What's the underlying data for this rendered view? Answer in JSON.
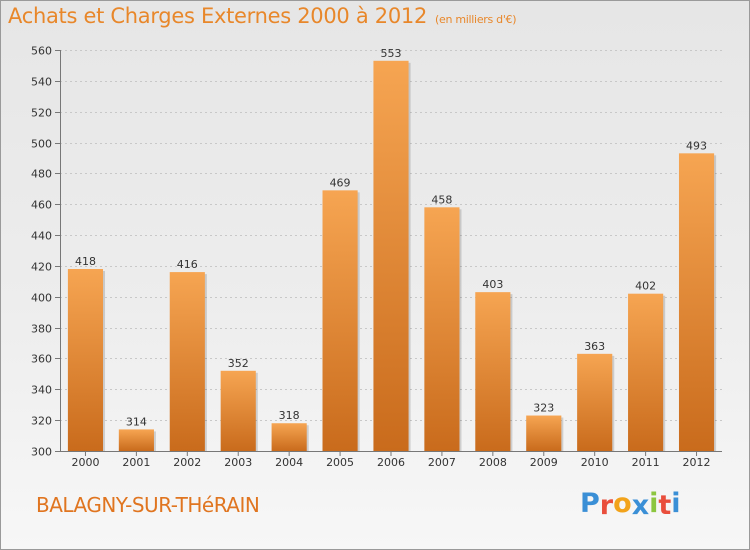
{
  "header": {
    "title": "Achats et Charges Externes 2000 à 2012",
    "unit": "(en milliers d'€)"
  },
  "footer": {
    "location": "BALAGNY-SUR-THéRAIN",
    "logo_letters": [
      "P",
      "r",
      "o",
      "x",
      "i",
      "t",
      "i"
    ],
    "logo_colors": [
      "#3a8fd6",
      "#e94e3c",
      "#f2a31b",
      "#3a8fd6",
      "#8cc63f",
      "#e94e3c",
      "#3a8fd6"
    ]
  },
  "chart_data": {
    "type": "bar",
    "categories": [
      "2000",
      "2001",
      "2002",
      "2003",
      "2004",
      "2005",
      "2006",
      "2007",
      "2008",
      "2009",
      "2010",
      "2011",
      "2012"
    ],
    "values": [
      418,
      314,
      416,
      352,
      318,
      469,
      553,
      458,
      403,
      323,
      363,
      402,
      493
    ],
    "ylim": [
      300,
      560
    ],
    "yticks": [
      300,
      320,
      340,
      360,
      380,
      400,
      420,
      440,
      460,
      480,
      500,
      520,
      540,
      560
    ],
    "grid": true,
    "bar_color_light": "#f6a552",
    "bar_color_dark": "#c96b1c"
  }
}
